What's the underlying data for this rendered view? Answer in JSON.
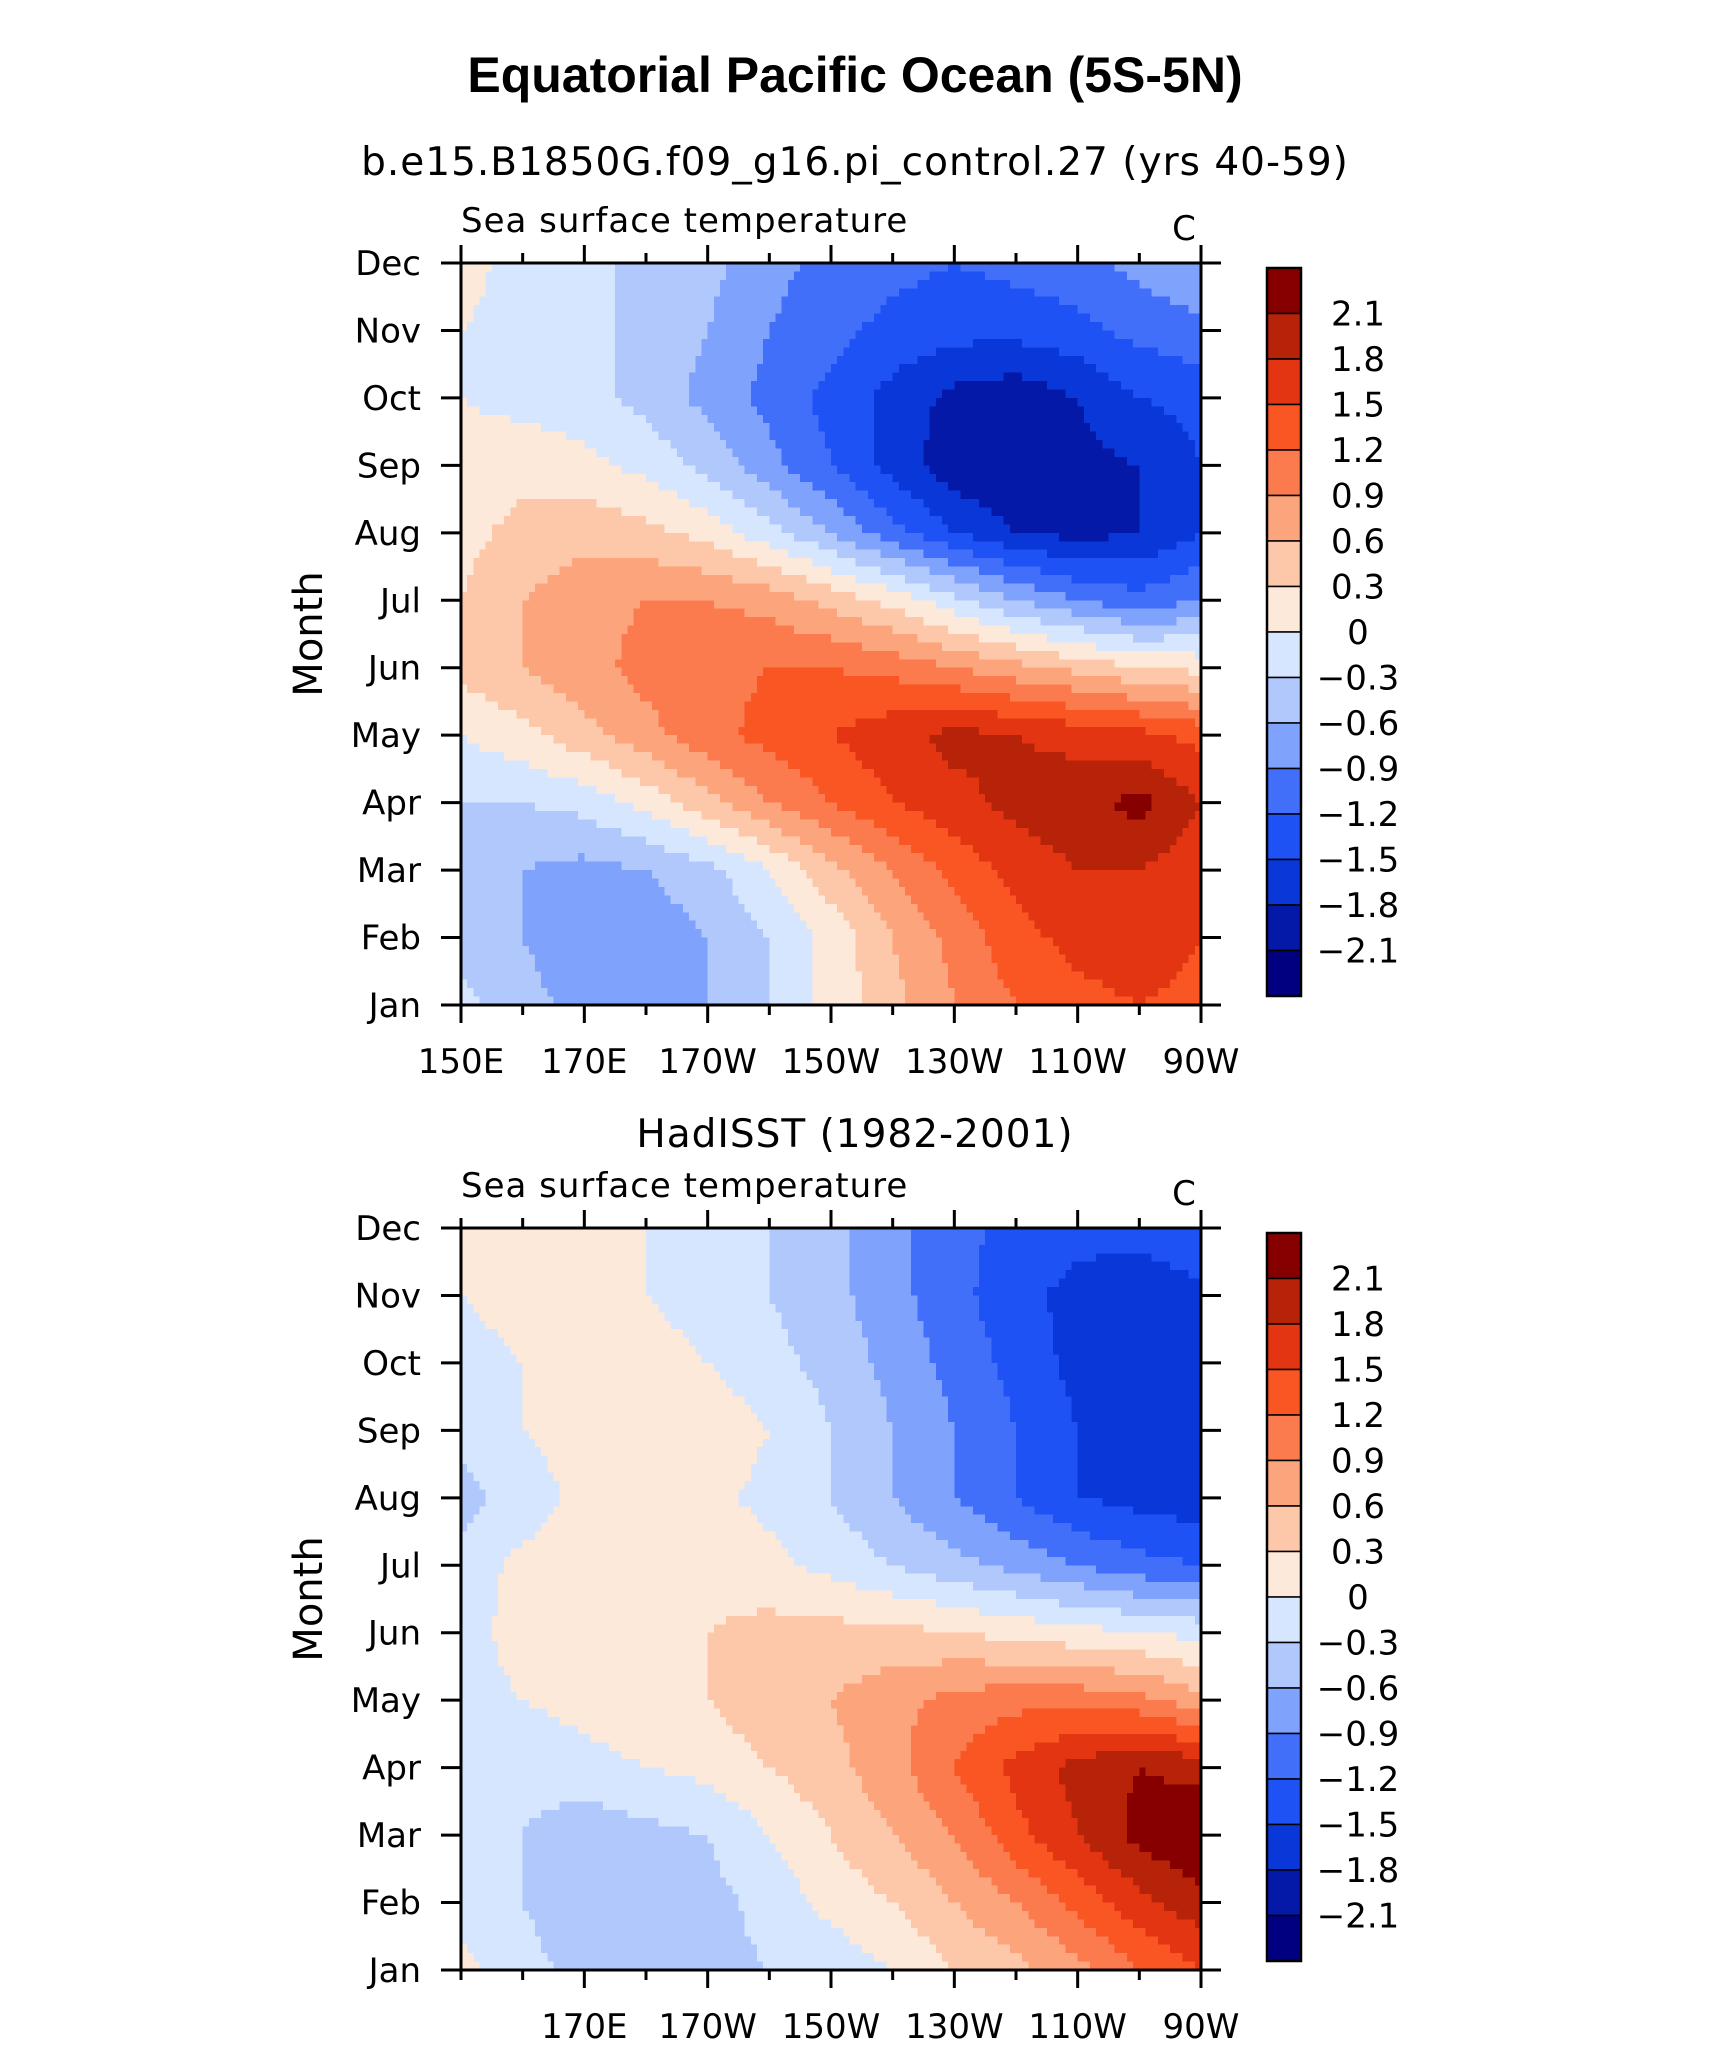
{
  "figure": {
    "title": "Equatorial Pacific Ocean (5S-5N)",
    "panel1_title": "b.e15.B1850G.f09_g16.pi_control.27 (yrs 40-59)",
    "panel2_title": "HadISST (1982-2001)"
  },
  "colors": {
    "levels": [
      -2.4,
      -2.1,
      -1.8,
      -1.5,
      -1.2,
      -0.9,
      -0.6,
      -0.3,
      0,
      0.3,
      0.6,
      0.9,
      1.2,
      1.5,
      1.8,
      2.1,
      2.4
    ],
    "fills": [
      "#000080",
      "#0519a8",
      "#0a38d8",
      "#1e52f5",
      "#416ffa",
      "#7fa2fd",
      "#b1c8fc",
      "#d6e6fe",
      "#fde9da",
      "#fcc8a9",
      "#fca57c",
      "#fb7b4f",
      "#f95623",
      "#e43512",
      "#b72308",
      "#860000"
    ]
  },
  "chart_data": [
    {
      "type": "heatmap",
      "title": "b.e15.B1850G.f09_g16.pi_control.27 (yrs 40-59)",
      "left_string": "Sea surface temperature",
      "right_string": "C",
      "ylabel": "Month",
      "xlabel": "",
      "x_tick_labels": [
        "150E",
        "170E",
        "170W",
        "150W",
        "130W",
        "110W",
        "90W"
      ],
      "y_tick_labels": [
        "Jan",
        "Feb",
        "Mar",
        "Apr",
        "May",
        "Jun",
        "Jul",
        "Aug",
        "Sep",
        "Oct",
        "Nov",
        "Dec"
      ],
      "xlim": [
        150,
        270
      ],
      "ylim": [
        1,
        12
      ],
      "grid": false,
      "legend": "right",
      "colorbar_labels": [
        "2.1",
        "1.8",
        "1.5",
        "1.2",
        "0.9",
        "0.6",
        "0.3",
        "0",
        "-0.3",
        "-0.6",
        "-0.9",
        "-1.2",
        "-1.5",
        "-1.8",
        "-2.1"
      ],
      "x": [
        150,
        160,
        170,
        180,
        190,
        200,
        210,
        220,
        230,
        240,
        250,
        260,
        270
      ],
      "y": [
        1,
        2,
        3,
        4,
        5,
        6,
        7,
        8,
        9,
        10,
        11,
        12
      ],
      "values": [
        [
          -0.2,
          -0.5,
          -0.7,
          -0.7,
          -0.6,
          -0.3,
          0.1,
          0.5,
          0.9,
          1.2,
          1.4,
          1.5,
          1.4
        ],
        [
          -0.4,
          -0.6,
          -0.8,
          -0.8,
          -0.6,
          -0.3,
          0.1,
          0.6,
          1.0,
          1.4,
          1.6,
          1.7,
          1.5
        ],
        [
          -0.4,
          -0.6,
          -0.7,
          -0.6,
          -0.4,
          0.0,
          0.5,
          0.9,
          1.3,
          1.6,
          1.8,
          1.8,
          1.6
        ],
        [
          -0.3,
          -0.3,
          -0.2,
          0.1,
          0.5,
          0.9,
          1.2,
          1.5,
          1.7,
          1.9,
          2.0,
          2.2,
          1.8
        ],
        [
          0.0,
          0.2,
          0.5,
          0.8,
          1.1,
          1.3,
          1.5,
          1.7,
          1.9,
          1.8,
          1.7,
          1.6,
          1.4
        ],
        [
          0.4,
          0.6,
          0.8,
          1.0,
          1.1,
          1.2,
          1.2,
          1.1,
          0.9,
          0.7,
          0.5,
          0.3,
          0.2
        ],
        [
          0.3,
          0.6,
          0.8,
          0.9,
          0.9,
          0.8,
          0.5,
          0.2,
          -0.2,
          -0.6,
          -0.9,
          -1.1,
          -0.9
        ],
        [
          0.2,
          0.4,
          0.5,
          0.4,
          0.2,
          -0.2,
          -0.6,
          -1.1,
          -1.5,
          -1.8,
          -1.9,
          -1.8,
          -1.5
        ],
        [
          0.1,
          0.2,
          0.1,
          -0.1,
          -0.4,
          -0.8,
          -1.2,
          -1.6,
          -2.0,
          -2.1,
          -1.9,
          -1.8,
          -1.5
        ],
        [
          0.0,
          -0.1,
          -0.2,
          -0.4,
          -0.7,
          -1.0,
          -1.3,
          -1.6,
          -1.9,
          -2.0,
          -1.8,
          -1.5,
          -1.4
        ],
        [
          0.0,
          -0.1,
          -0.2,
          -0.4,
          -0.6,
          -0.9,
          -1.1,
          -1.3,
          -1.4,
          -1.4,
          -1.3,
          -1.1,
          -1.0
        ],
        [
          0.1,
          -0.1,
          -0.2,
          -0.4,
          -0.5,
          -0.8,
          -1.0,
          -1.1,
          -1.2,
          -1.1,
          -1.0,
          -0.8,
          -0.6
        ]
      ]
    },
    {
      "type": "heatmap",
      "title": "HadISST (1982-2001)",
      "left_string": "Sea surface temperature",
      "right_string": "C",
      "ylabel": "Month",
      "xlabel": "",
      "x_tick_labels": [
        "170E",
        "170W",
        "150W",
        "130W",
        "110W",
        "90W"
      ],
      "y_tick_labels": [
        "Jan",
        "Feb",
        "Mar",
        "Apr",
        "May",
        "Jun",
        "Jul",
        "Aug",
        "Sep",
        "Oct",
        "Nov",
        "Dec"
      ],
      "xlim": [
        150,
        270
      ],
      "ylim": [
        1,
        12
      ],
      "grid": false,
      "legend": "right",
      "colorbar_labels": [
        "2.1",
        "1.8",
        "1.5",
        "1.2",
        "0.9",
        "0.6",
        "0.3",
        "0",
        "-0.3",
        "-0.6",
        "-0.9",
        "-1.2",
        "-1.5",
        "-1.8",
        "-2.1"
      ],
      "x": [
        150,
        160,
        170,
        180,
        190,
        200,
        210,
        220,
        230,
        240,
        250,
        260,
        270
      ],
      "y": [
        1,
        2,
        3,
        4,
        5,
        6,
        7,
        8,
        9,
        10,
        11,
        12
      ],
      "values": [
        [
          0.1,
          -0.2,
          -0.4,
          -0.4,
          -0.4,
          -0.3,
          -0.2,
          0.0,
          0.3,
          0.5,
          0.8,
          1.2,
          1.5
        ],
        [
          -0.1,
          -0.3,
          -0.5,
          -0.5,
          -0.4,
          -0.2,
          0.1,
          0.3,
          0.6,
          0.9,
          1.3,
          1.7,
          2.0
        ],
        [
          -0.2,
          -0.3,
          -0.5,
          -0.4,
          -0.3,
          0.0,
          0.3,
          0.6,
          0.9,
          1.4,
          1.8,
          2.2,
          2.4
        ],
        [
          -0.2,
          -0.2,
          -0.1,
          0.0,
          0.1,
          0.3,
          0.5,
          0.8,
          1.2,
          1.6,
          1.9,
          2.1,
          2.0
        ],
        [
          -0.1,
          0.0,
          0.1,
          0.2,
          0.3,
          0.5,
          0.6,
          0.8,
          1.0,
          1.1,
          1.1,
          1.0,
          0.7
        ],
        [
          -0.1,
          0.1,
          0.2,
          0.2,
          0.3,
          0.4,
          0.4,
          0.4,
          0.3,
          0.2,
          0.1,
          0.0,
          -0.1
        ],
        [
          -0.2,
          0.1,
          0.2,
          0.2,
          0.2,
          0.1,
          -0.1,
          -0.3,
          -0.5,
          -0.7,
          -0.9,
          -1.1,
          -1.2
        ],
        [
          -0.4,
          -0.2,
          0.1,
          0.2,
          0.1,
          -0.1,
          -0.3,
          -0.6,
          -0.9,
          -1.2,
          -1.5,
          -1.6,
          -1.7
        ],
        [
          -0.2,
          0.0,
          0.2,
          0.3,
          0.2,
          0.0,
          -0.3,
          -0.6,
          -0.9,
          -1.2,
          -1.5,
          -1.7,
          -1.8
        ],
        [
          -0.1,
          0.0,
          0.1,
          0.1,
          0.0,
          -0.2,
          -0.4,
          -0.7,
          -1.0,
          -1.3,
          -1.6,
          -1.8,
          -1.8
        ],
        [
          0.0,
          0.1,
          0.1,
          0.0,
          -0.1,
          -0.3,
          -0.5,
          -0.8,
          -1.1,
          -1.4,
          -1.6,
          -1.7,
          -1.6
        ],
        [
          0.1,
          0.1,
          0.1,
          0.0,
          -0.1,
          -0.3,
          -0.5,
          -0.8,
          -1.1,
          -1.3,
          -1.4,
          -1.4,
          -1.2
        ]
      ]
    }
  ]
}
